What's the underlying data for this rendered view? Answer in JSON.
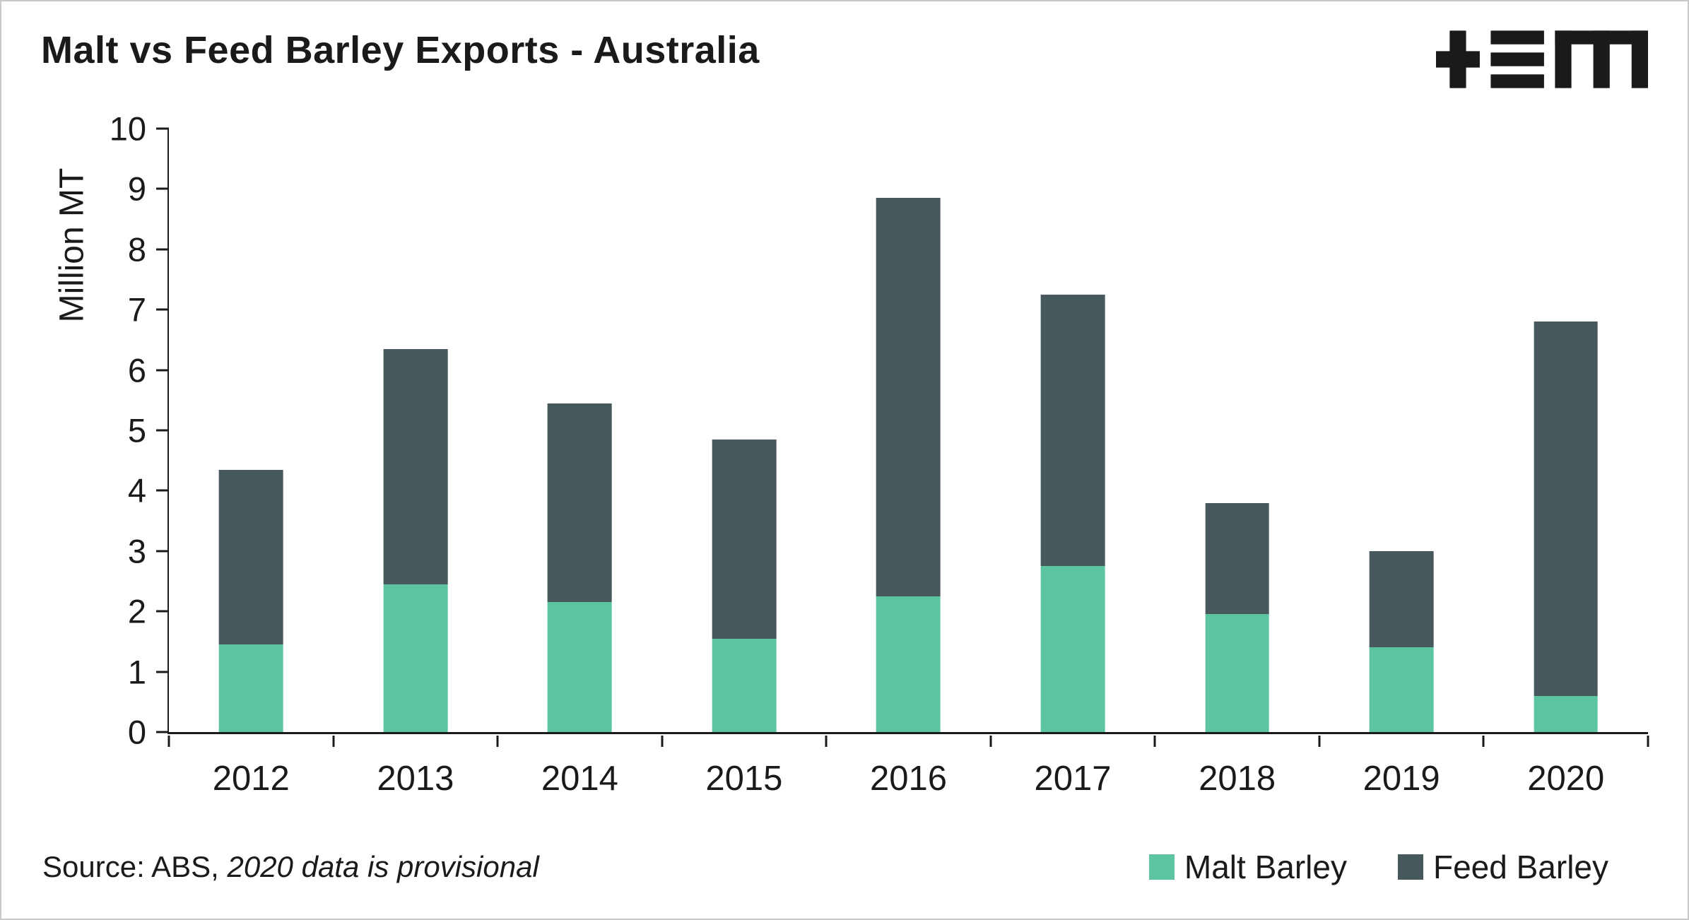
{
  "chart_data": {
    "type": "bar",
    "stacked": true,
    "title": "Malt vs Feed Barley Exports - Australia",
    "xlabel": "",
    "ylabel": "Million MT",
    "ylim": [
      0,
      10
    ],
    "ytick_step": 1,
    "grid": false,
    "legend_position": "bottom-right",
    "categories": [
      "2012",
      "2013",
      "2014",
      "2015",
      "2016",
      "2017",
      "2018",
      "2019",
      "2020"
    ],
    "series": [
      {
        "name": "Malt Barley",
        "color": "#5cc5a0",
        "values": [
          1.45,
          2.45,
          2.15,
          1.55,
          2.25,
          2.75,
          1.95,
          1.4,
          0.6
        ]
      },
      {
        "name": "Feed Barley",
        "color": "#48595d",
        "values": [
          2.9,
          3.9,
          3.3,
          3.3,
          6.6,
          4.5,
          1.85,
          1.6,
          6.2
        ]
      }
    ]
  },
  "source_note": {
    "prefix": "Source: ABS, ",
    "italic": "2020 data is provisional"
  },
  "logo": {
    "alt": "TEM"
  }
}
